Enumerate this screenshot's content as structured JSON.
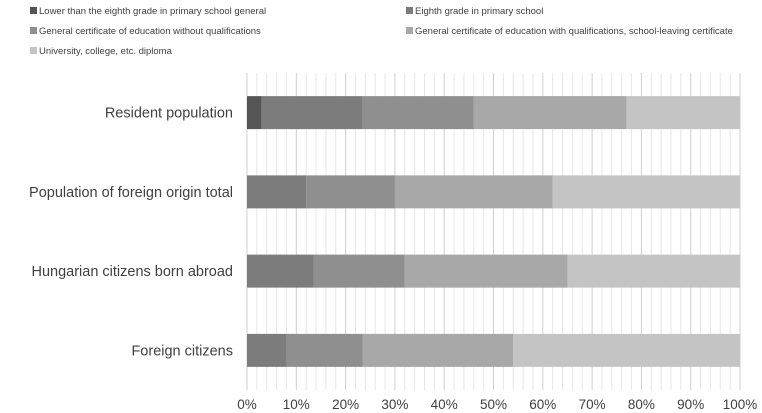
{
  "chart_data": {
    "type": "bar",
    "orientation": "horizontal",
    "stacked": true,
    "percent": true,
    "title": "",
    "xlabel": "",
    "ylabel": "",
    "xlim": [
      0,
      100
    ],
    "x_ticks": [
      "0%",
      "10%",
      "20%",
      "30%",
      "40%",
      "50%",
      "60%",
      "70%",
      "80%",
      "90%",
      "100%"
    ],
    "grid": true,
    "legend_position": "top",
    "categories": [
      "Resident population",
      "Population of foreign origin total",
      "Hungarian citizens born abroad",
      "Foreign citizens"
    ],
    "series": [
      {
        "name": "Lower than the eighth grade in primary school general",
        "color": "#555555",
        "values": [
          3,
          0,
          0,
          0
        ]
      },
      {
        "name": "Eighth grade in primary school",
        "color": "#7c7c7c",
        "values": [
          20.5,
          12,
          13.5,
          8
        ]
      },
      {
        "name": "General certificate of education without qualifications",
        "color": "#8f8f8f",
        "values": [
          22.5,
          18,
          18.5,
          15.5
        ]
      },
      {
        "name": "General certificate of education with qualifications, school-leaving certificate",
        "color": "#a8a8a8",
        "values": [
          31,
          32,
          33,
          30.5
        ]
      },
      {
        "name": "University, college, etc. diploma",
        "color": "#c4c4c4",
        "values": [
          23,
          38,
          35,
          46
        ]
      }
    ]
  }
}
